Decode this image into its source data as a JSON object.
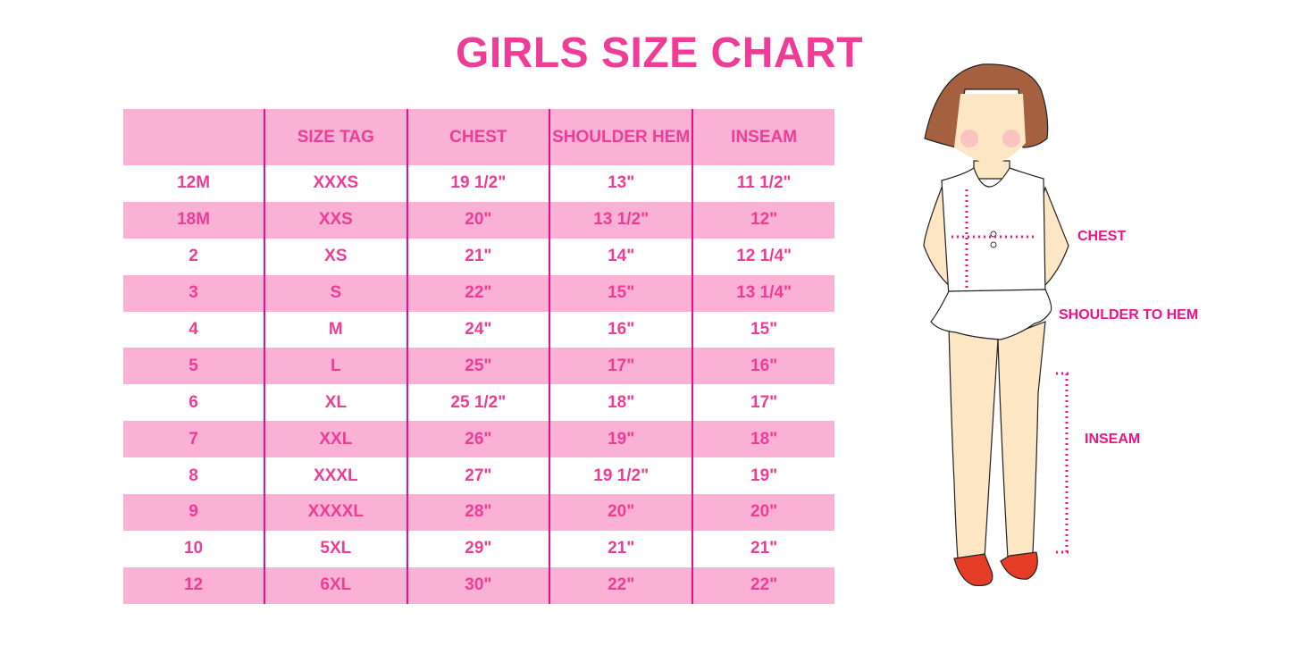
{
  "title": "GIRLS SIZE CHART",
  "table": {
    "headers": [
      "",
      "SIZE TAG",
      "CHEST",
      "SHOULDER HEM",
      "INSEAM"
    ],
    "rows": [
      [
        "12M",
        "XXXS",
        "19 1/2\"",
        "13\"",
        "11 1/2\""
      ],
      [
        "18M",
        "XXS",
        "20\"",
        "13 1/2\"",
        "12\""
      ],
      [
        "2",
        "XS",
        "21\"",
        "14\"",
        "12 1/4\""
      ],
      [
        "3",
        "S",
        "22\"",
        "15\"",
        "13 1/4\""
      ],
      [
        "4",
        "M",
        "24\"",
        "16\"",
        "15\""
      ],
      [
        "5",
        "L",
        "25\"",
        "17\"",
        "16\""
      ],
      [
        "6",
        "XL",
        "25 1/2\"",
        "18\"",
        "17\""
      ],
      [
        "7",
        "XXL",
        "26\"",
        "19\"",
        "18\""
      ],
      [
        "8",
        "XXXL",
        "27\"",
        "19 1/2\"",
        "19\""
      ],
      [
        "9",
        "XXXXL",
        "28\"",
        "20\"",
        "20\""
      ],
      [
        "10",
        "5XL",
        "29\"",
        "21\"",
        "21\""
      ],
      [
        "12",
        "6XL",
        "30\"",
        "22\"",
        "22\""
      ]
    ]
  },
  "illustration": {
    "labels": {
      "chest": "CHEST",
      "shoulder_to_hem": "SHOULDER TO HEM",
      "inseam": "INSEAM"
    }
  },
  "colors": {
    "accent": "#ef3d97",
    "row_pink": "#fbb0d5",
    "divider": "#e0138c"
  }
}
